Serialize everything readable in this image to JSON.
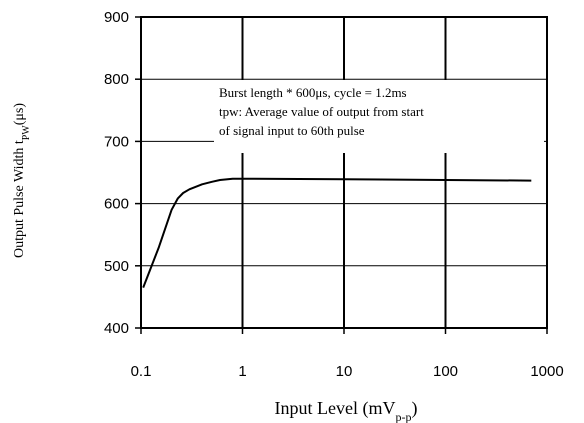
{
  "chart_data": {
    "type": "line",
    "x_scale": "log",
    "xlim": [
      0.1,
      1000
    ],
    "ylim": [
      400,
      900
    ],
    "x_ticks": [
      0.1,
      1,
      10,
      100,
      1000
    ],
    "x_tick_labels": [
      "0.1",
      "1",
      "10",
      "100",
      "1000"
    ],
    "y_ticks": [
      400,
      500,
      600,
      700,
      800,
      900
    ],
    "y_tick_labels": [
      "400",
      "500",
      "600",
      "700",
      "800",
      "900"
    ],
    "grid": true,
    "xlabel": {
      "main": "Input Level (mV",
      "sub": "p-p",
      "end": ")"
    },
    "ylabel": {
      "main": "Output Pulse Width t",
      "sub": "PW",
      "end": "(μs)"
    },
    "annotation": [
      "Burst length * 600μs, cycle = 1.2ms",
      "tpw: Average value of output from start",
      "of signal input to 60th pulse"
    ],
    "series": [
      {
        "x": [
          0.105,
          0.15,
          0.2,
          0.23,
          0.26,
          0.3,
          0.4,
          0.5,
          0.6,
          0.8,
          1.0,
          10,
          100,
          700
        ],
        "y": [
          465,
          530,
          590,
          608,
          617,
          623,
          631,
          635,
          638,
          640,
          640,
          639,
          638,
          637
        ]
      }
    ]
  }
}
